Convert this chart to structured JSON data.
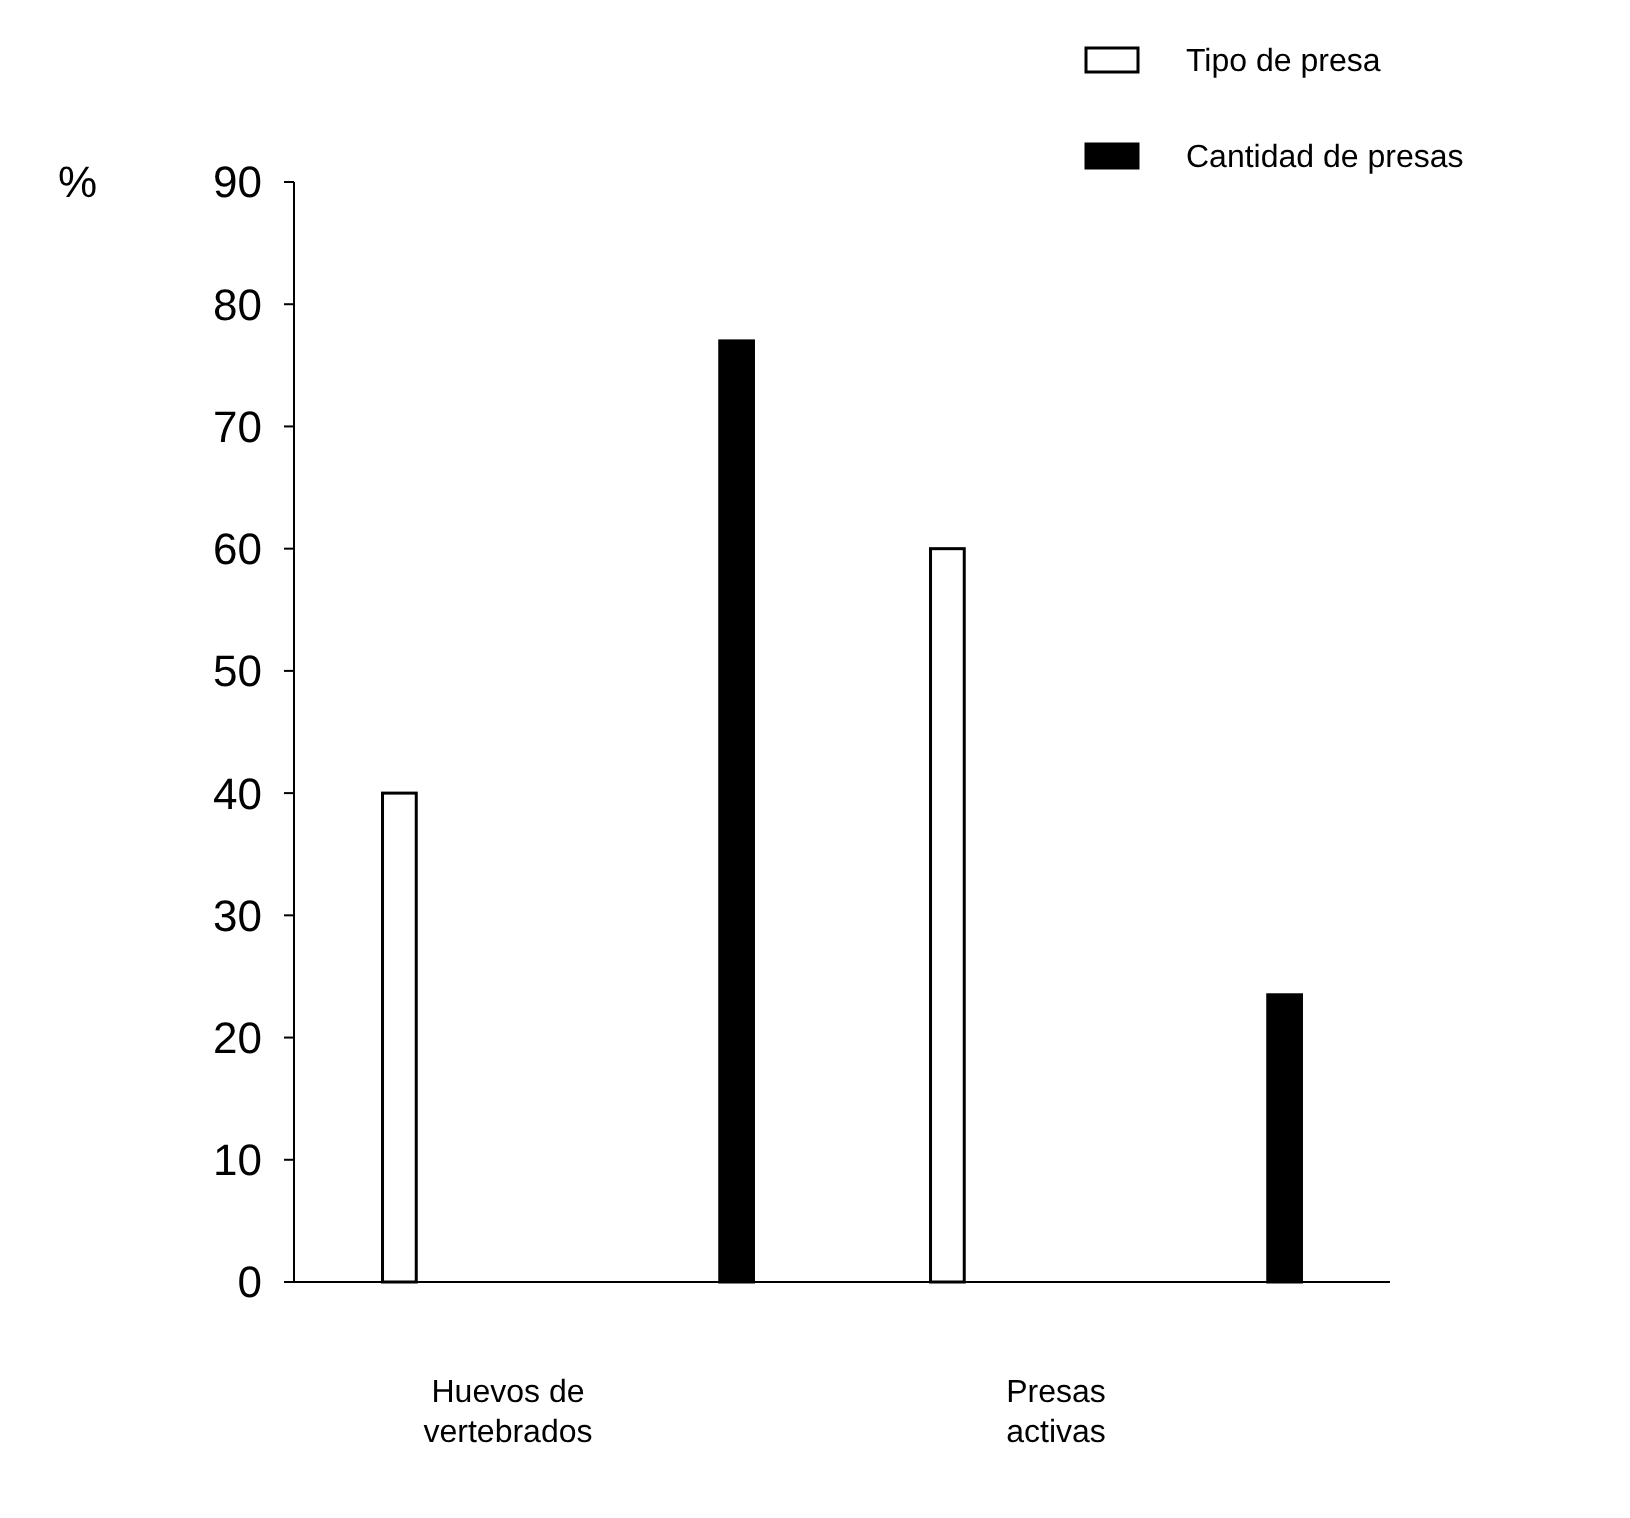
{
  "chart_data": {
    "type": "bar",
    "ylabel": "%",
    "categories": [
      "Huevos de vertebrados",
      "Presas activas"
    ],
    "series": [
      {
        "name": "Tipo de presa",
        "color": "#ffffff",
        "values": [
          40,
          60
        ]
      },
      {
        "name": "Cantidad de presas",
        "color": "#000000",
        "values": [
          77,
          23.5
        ]
      }
    ],
    "ylim": [
      0,
      90
    ],
    "yticks": [
      0,
      10,
      20,
      30,
      40,
      50,
      60,
      70,
      80,
      90
    ],
    "grid": false,
    "legend": "top right"
  }
}
